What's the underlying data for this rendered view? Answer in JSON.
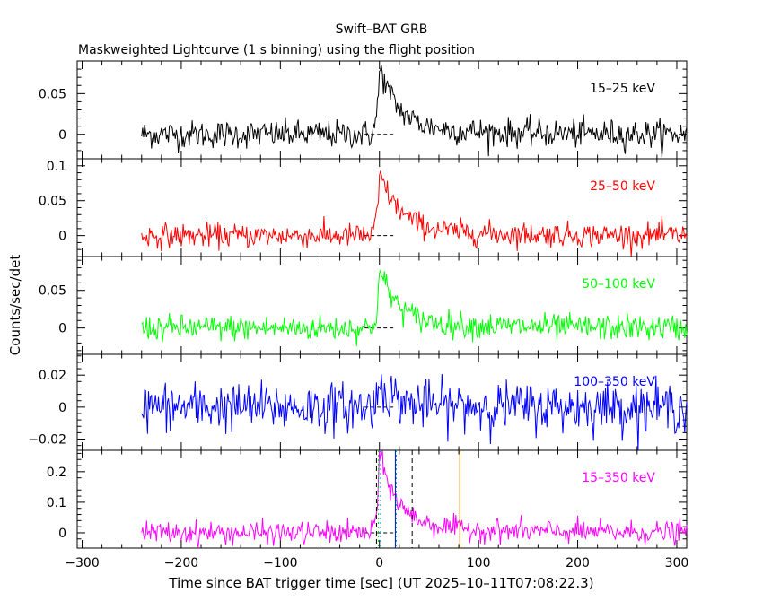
{
  "chart_data": {
    "type": "line",
    "title": "Swift–BAT GRB",
    "subtitle": "Maskweighted Lightcurve (1 s binning) using the flight position",
    "xlabel": "Time since BAT trigger time [sec] (UT 2025–10–11T07:08:22.3)",
    "ylabel": "Counts/sec/det",
    "xlim": [
      -305,
      310
    ],
    "x_ticks": [
      -300,
      -200,
      -100,
      0,
      100,
      200,
      300
    ],
    "x_tick_labels": [
      "−300",
      "−200",
      "−100",
      "0",
      "100",
      "200",
      "300"
    ],
    "data_range": [
      -240,
      310
    ],
    "binning_s": 1,
    "panels": [
      {
        "name": "15–25 keV",
        "color": "#000000",
        "ylim": [
          -0.03,
          0.09
        ],
        "y_ticks": [
          0,
          0.05
        ],
        "y_tick_labels": [
          "0",
          "0.05"
        ],
        "noise": 0.0085,
        "peak": 0.075,
        "peak_time": 0,
        "decay": 18
      },
      {
        "name": "25–50 keV",
        "color": "#ff0000",
        "ylim": [
          -0.03,
          0.11
        ],
        "y_ticks": [
          0,
          0.05,
          0.1
        ],
        "y_tick_labels": [
          "0",
          "0.05",
          "0.1"
        ],
        "noise": 0.0085,
        "peak": 0.08,
        "peak_time": 0,
        "decay": 20
      },
      {
        "name": "50–100 keV",
        "color": "#00ff00",
        "ylim": [
          -0.035,
          0.095
        ],
        "y_ticks": [
          0,
          0.05
        ],
        "y_tick_labels": [
          "0",
          "0.05"
        ],
        "noise": 0.0085,
        "peak": 0.07,
        "peak_time": 0,
        "decay": 18
      },
      {
        "name": "100–350 keV",
        "color": "#0000ff",
        "ylim": [
          -0.027,
          0.033
        ],
        "y_ticks": [
          -0.02,
          0,
          0.02
        ],
        "y_tick_labels": [
          "−0.02",
          "0",
          "0.02"
        ],
        "noise": 0.0075,
        "peak": 0.015,
        "peak_time": 0,
        "decay": 12
      },
      {
        "name": "15–350 keV",
        "color": "#ff00ff",
        "ylim": [
          -0.05,
          0.27
        ],
        "y_ticks": [
          0,
          0.1,
          0.2
        ],
        "y_tick_labels": [
          "0",
          "0.1",
          "0.2"
        ],
        "noise": 0.018,
        "peak": 0.23,
        "peak_time": 0,
        "decay": 18
      }
    ],
    "markers": [
      {
        "name": "T100 start",
        "x": -3,
        "color": "#000000",
        "style": "dashed"
      },
      {
        "name": "T100 stop",
        "x": 33,
        "color": "#000000",
        "style": "dashed"
      },
      {
        "name": "T90 start",
        "x": -1,
        "color": "#00cc00",
        "style": "dotted"
      },
      {
        "name": "T90 stop",
        "x": 17,
        "color": "#00cc00",
        "style": "dotted"
      },
      {
        "name": "T50 stop",
        "x": 16,
        "color": "#0000ff",
        "style": "solid"
      },
      {
        "name": "T50 start",
        "x": 1,
        "color": "#00aaff",
        "style": "dotted"
      },
      {
        "name": "extra",
        "x": 81,
        "color": "#d08000",
        "style": "solid"
      }
    ]
  }
}
